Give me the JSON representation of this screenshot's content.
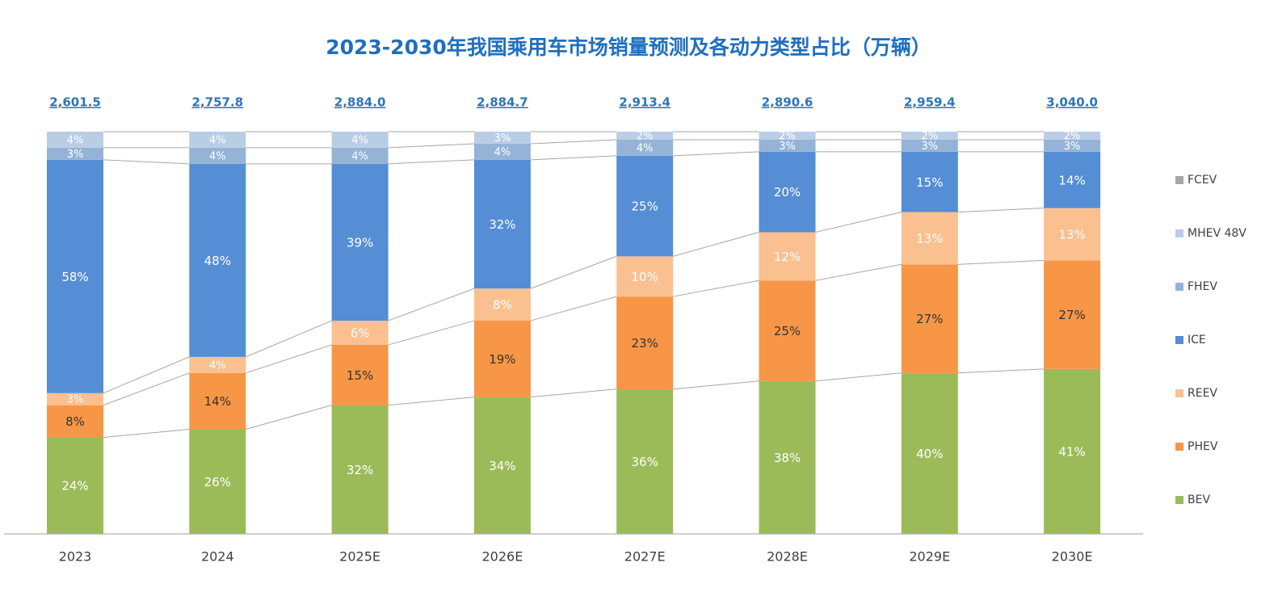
{
  "chart_data": {
    "type": "stacked_bar_percent",
    "title": "2023-2030年我国乘用车市场销量预测及各动力类型占比（万辆）",
    "categories": [
      "2023",
      "2024",
      "2025E",
      "2026E",
      "2027E",
      "2028E",
      "2029E",
      "2030E"
    ],
    "totals": [
      2601.5,
      2757.8,
      2884.0,
      2884.7,
      2913.4,
      2890.6,
      2959.4,
      3040.0
    ],
    "total_labels": [
      "2,601.5",
      "2,757.8",
      "2,884.0",
      "2,884.7",
      "2,913.4",
      "2,890.6",
      "2,959.4",
      "3,040.0"
    ],
    "ylim": [
      0,
      100
    ],
    "series": [
      {
        "name": "BEV",
        "color": "#9bbb59",
        "values": [
          24,
          26,
          32,
          34,
          36,
          38,
          40,
          41
        ],
        "value_labels": [
          "24%",
          "26%",
          "32%",
          "34%",
          "36%",
          "38%",
          "40%",
          "41%"
        ]
      },
      {
        "name": "PHEV",
        "color": "#f79646",
        "values": [
          8,
          14,
          15,
          19,
          23,
          25,
          27,
          27
        ],
        "value_labels": [
          "8%",
          "14%",
          "15%",
          "19%",
          "23%",
          "25%",
          "27%",
          "27%"
        ]
      },
      {
        "name": "REEV",
        "color": "#fac090",
        "values": [
          3,
          4,
          6,
          8,
          10,
          12,
          13,
          13
        ],
        "value_labels": [
          "3%",
          "4%",
          "6%",
          "8%",
          "10%",
          "12%",
          "13%",
          "13%"
        ]
      },
      {
        "name": "ICE",
        "color": "#558ed5",
        "values": [
          58,
          48,
          39,
          32,
          25,
          20,
          15,
          14
        ],
        "value_labels": [
          "58%",
          "48%",
          "39%",
          "32%",
          "25%",
          "20%",
          "15%",
          "14%"
        ]
      },
      {
        "name": "FHEV",
        "color": "#95b3d7",
        "values": [
          3,
          4,
          4,
          4,
          4,
          3,
          3,
          3
        ],
        "value_labels": [
          "3%",
          "4%",
          "4%",
          "4%",
          "4%",
          "3%",
          "3%",
          "3%"
        ]
      },
      {
        "name": "MHEV 48V",
        "color": "#b9cde5",
        "values": [
          4,
          4,
          4,
          3,
          2,
          2,
          2,
          2
        ],
        "value_labels": [
          "4%",
          "4%",
          "4%",
          "3%",
          "2%",
          "2%",
          "2%",
          "2%"
        ]
      },
      {
        "name": "FCEV",
        "color": "#a6a6a6",
        "values": [
          0,
          0,
          0,
          0,
          0,
          0,
          0,
          0
        ]
      }
    ]
  }
}
